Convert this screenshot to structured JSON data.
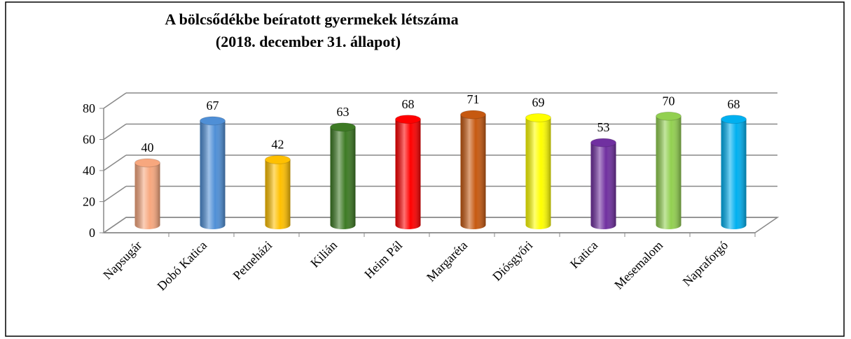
{
  "chart_data": {
    "type": "bar3d",
    "title": "A bölcsődékbe beíratott gyermekek létszáma",
    "subtitle": "(2018. december 31. állapot)",
    "categories": [
      "Napsugár",
      "Dobó Katica",
      "Petneházi",
      "Kilián",
      "Heim Pál",
      "Margaréta",
      "Diósgyőri",
      "Katica",
      "Mesemalom",
      "Napraforgó"
    ],
    "values": [
      40,
      67,
      42,
      63,
      68,
      71,
      69,
      53,
      70,
      68
    ],
    "colors": [
      "#f7a77e",
      "#4f8fd6",
      "#ffc000",
      "#3d7a24",
      "#ff0000",
      "#c65911",
      "#ffff00",
      "#7030a0",
      "#92d050",
      "#00b0f0"
    ],
    "ylim": [
      0,
      80
    ],
    "yticks": [
      0,
      20,
      40,
      60,
      80
    ],
    "grid": true
  }
}
